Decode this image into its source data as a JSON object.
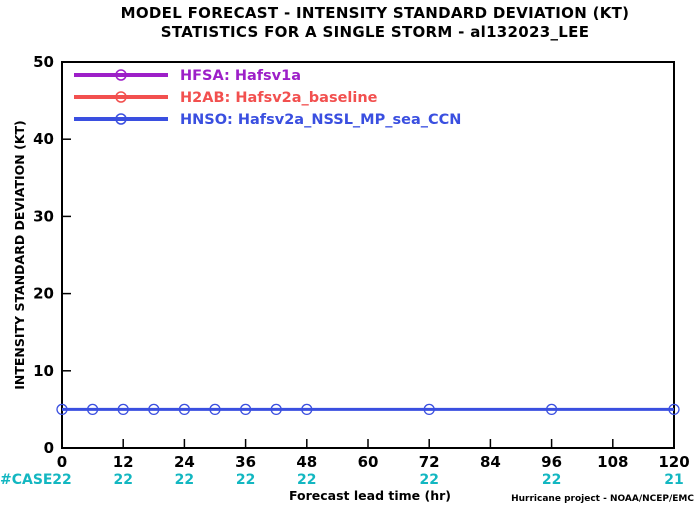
{
  "chart_data": {
    "type": "line",
    "title": "MODEL FORECAST - INTENSITY STANDARD DEVIATION (KT)",
    "subtitle": "STATISTICS FOR A SINGLE STORM - al132023_LEE",
    "xlabel": "Forecast lead time (hr)",
    "ylabel": "INTENSITY STANDARD DEVIATION (KT)",
    "xlim": [
      0,
      120
    ],
    "ylim": [
      0,
      50
    ],
    "x_ticks": [
      0,
      12,
      24,
      36,
      48,
      60,
      72,
      84,
      96,
      108,
      120
    ],
    "y_ticks": [
      0,
      10,
      20,
      30,
      40,
      50
    ],
    "grid": false,
    "legend_position": "top-left",
    "series": [
      {
        "name": "HFSA: Hafsv1a",
        "color": "#9d1fc8",
        "x": [],
        "y": []
      },
      {
        "name": "H2AB: Hafsv2a_baseline",
        "color": "#f2504f",
        "x": [],
        "y": []
      },
      {
        "name": "HNSO: Hafsv2a_NSSL_MP_sea_CCN",
        "color": "#3a4fe0",
        "x": [
          0,
          6,
          12,
          18,
          24,
          30,
          36,
          42,
          48,
          72,
          96,
          120
        ],
        "y": [
          5,
          5,
          5,
          5,
          5,
          5,
          5,
          5,
          5,
          5,
          5,
          5
        ]
      }
    ],
    "case_counts": {
      "label": "#CASE",
      "x": [
        0,
        12,
        24,
        36,
        48,
        72,
        96,
        120
      ],
      "values": [
        "22",
        "22",
        "22",
        "22",
        "22",
        "22",
        "22",
        "21"
      ]
    },
    "credit": "Hurricane project - NOAA/NCEP/EMC"
  }
}
